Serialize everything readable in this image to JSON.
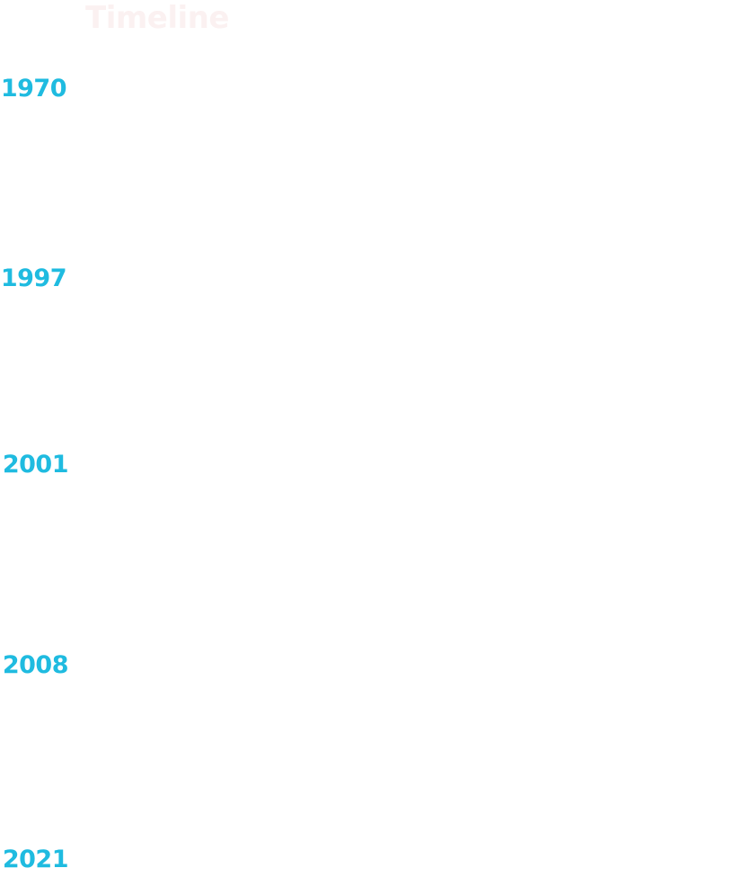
{
  "page": {
    "title": "Timeline"
  },
  "timeline": {
    "years": [
      "1970",
      "1997",
      "2001",
      "2008",
      "2021"
    ]
  },
  "colors": {
    "title": "#fbf1f1",
    "year": "#1fbbe0",
    "background": "#ffffff"
  }
}
